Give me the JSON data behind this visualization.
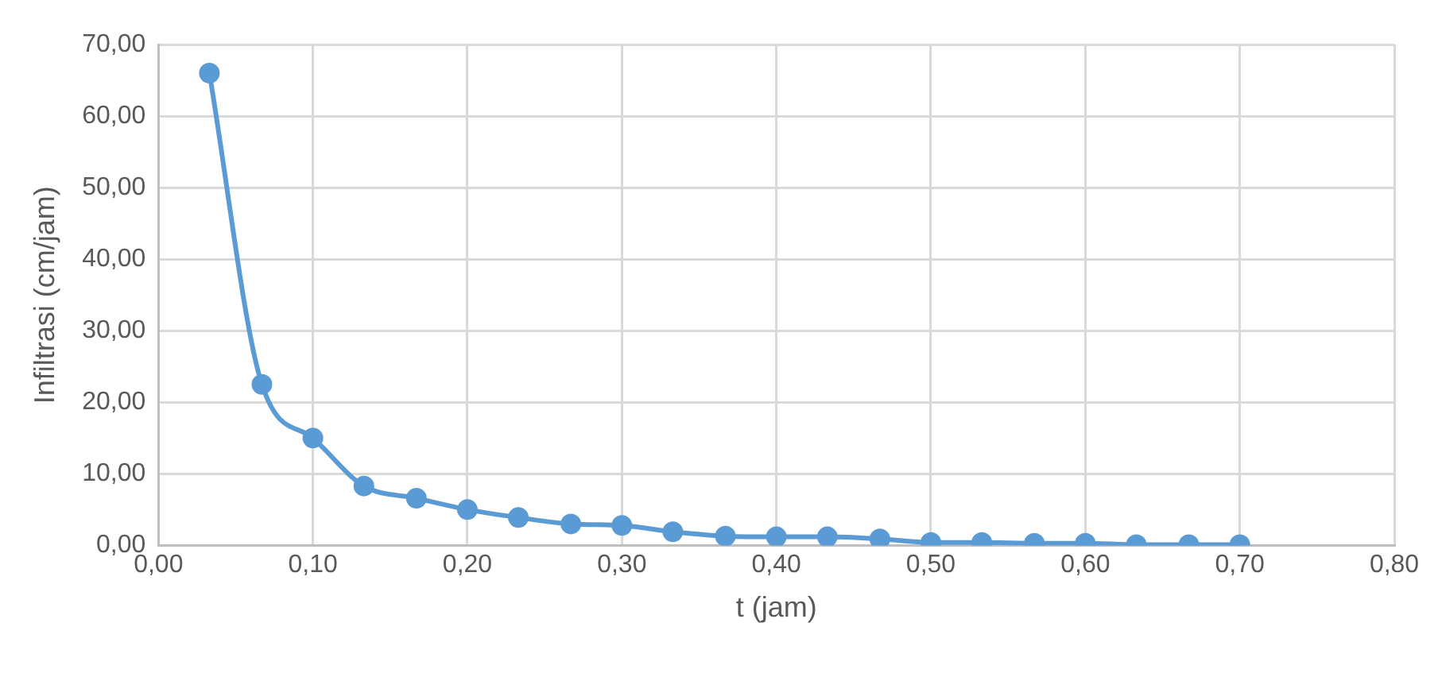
{
  "chart_data": {
    "type": "line",
    "xlabel": "t (jam)",
    "ylabel": "Infiltrasi (cm/jam)",
    "x": [
      0.033,
      0.067,
      0.1,
      0.133,
      0.167,
      0.2,
      0.233,
      0.267,
      0.3,
      0.333,
      0.367,
      0.4,
      0.433,
      0.467,
      0.5,
      0.533,
      0.567,
      0.6,
      0.633,
      0.667,
      0.7
    ],
    "series": [
      {
        "color": "#5b9bd5",
        "values": [
          66,
          22.5,
          15,
          8.3,
          6.6,
          5,
          3.9,
          3,
          2.8,
          1.9,
          1.3,
          1.2,
          1.2,
          0.9,
          0.4,
          0.4,
          0.3,
          0.3,
          0.1,
          0.1,
          0.1
        ]
      }
    ],
    "xlim": [
      0,
      0.8
    ],
    "xticks": [
      {
        "value": 0,
        "label": "0,00"
      },
      {
        "value": 0.1,
        "label": "0,10"
      },
      {
        "value": 0.2,
        "label": "0,20"
      },
      {
        "value": 0.3,
        "label": "0,30"
      },
      {
        "value": 0.4,
        "label": "0,40"
      },
      {
        "value": 0.5,
        "label": "0,50"
      },
      {
        "value": 0.6,
        "label": "0,60"
      },
      {
        "value": 0.7,
        "label": "0,70"
      },
      {
        "value": 0.8,
        "label": "0,80"
      }
    ],
    "ylim": [
      0,
      70
    ],
    "yticks": [
      {
        "value": 0,
        "label": "0,00"
      },
      {
        "value": 10,
        "label": "10,00"
      },
      {
        "value": 20,
        "label": "20,00"
      },
      {
        "value": 30,
        "label": "30,00"
      },
      {
        "value": 40,
        "label": "40,00"
      },
      {
        "value": 50,
        "label": "50,00"
      },
      {
        "value": 60,
        "label": "60,00"
      },
      {
        "value": 70,
        "label": "70,00"
      }
    ],
    "grid": true,
    "legend": false,
    "marker": "circle",
    "line_style": "solid"
  }
}
